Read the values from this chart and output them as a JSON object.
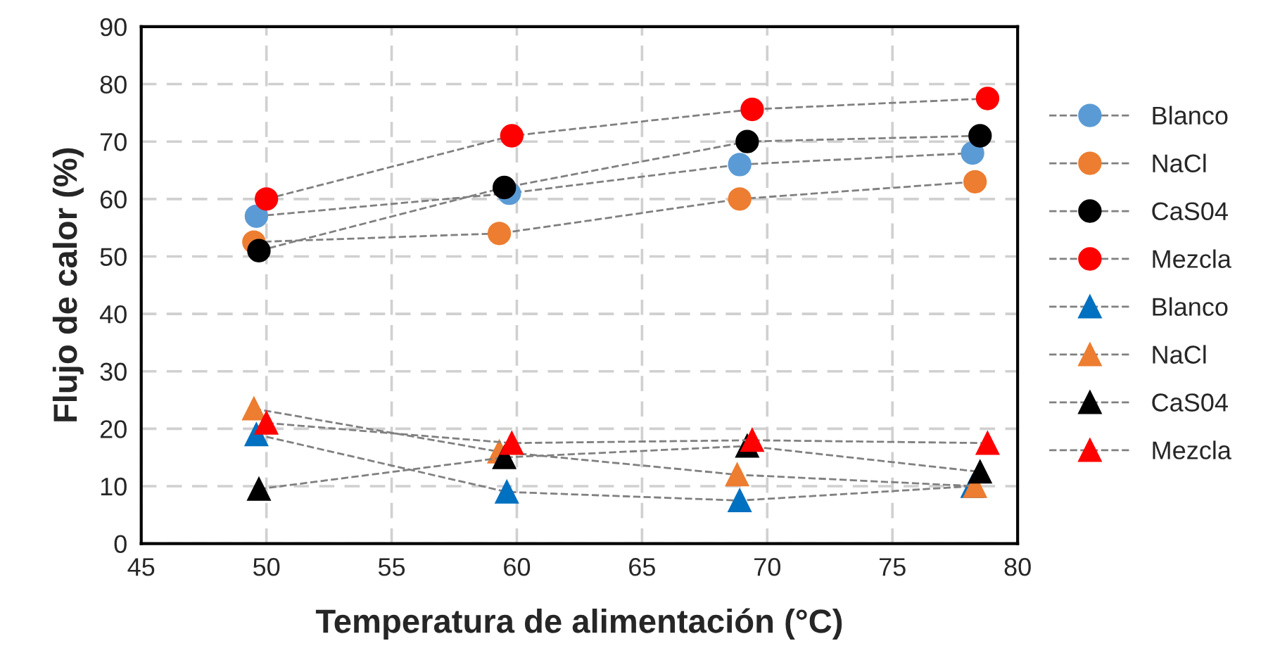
{
  "chart_data": {
    "type": "line",
    "xlabel": "Temperatura de alimentación (°C)",
    "ylabel": "Flujo de calor (%)",
    "xlim": [
      45,
      80
    ],
    "xticks": [
      45,
      50,
      55,
      60,
      65,
      70,
      75,
      80
    ],
    "ylim": [
      0,
      90
    ],
    "yticks": [
      0,
      10,
      20,
      30,
      40,
      50,
      60,
      70,
      80,
      90
    ],
    "grid": true,
    "legend": "right",
    "line_style": "dashed",
    "series": [
      {
        "name": "Blanco",
        "color": "#5b9bd5",
        "marker": "circle",
        "x": [
          49.6,
          59.7,
          68.9,
          78.2
        ],
        "values": [
          57,
          61,
          66,
          68
        ]
      },
      {
        "name": "NaCl",
        "color": "#ed7d31",
        "marker": "circle",
        "x": [
          49.5,
          59.3,
          68.9,
          78.3
        ],
        "values": [
          52.5,
          54,
          60,
          63
        ]
      },
      {
        "name": "CaS04",
        "color": "#000000",
        "marker": "circle",
        "x": [
          49.7,
          59.5,
          69.2,
          78.5
        ],
        "values": [
          51,
          62,
          70,
          71
        ]
      },
      {
        "name": "Mezcla",
        "color": "#ff0000",
        "marker": "circle",
        "x": [
          50,
          59.8,
          69.4,
          78.8
        ],
        "values": [
          60,
          71,
          75.6,
          77.5
        ]
      },
      {
        "name": "Blanco",
        "color": "#0070c0",
        "marker": "triangle",
        "x": [
          49.6,
          59.6,
          68.9,
          78.2
        ],
        "values": [
          19,
          9,
          7.5,
          10
        ]
      },
      {
        "name": "NaCl",
        "color": "#ed7d31",
        "marker": "triangle",
        "x": [
          49.5,
          59.3,
          68.8,
          78.3
        ],
        "values": [
          23.5,
          16,
          12,
          10
        ]
      },
      {
        "name": "CaS04",
        "color": "#000000",
        "marker": "triangle",
        "x": [
          49.7,
          59.5,
          69.2,
          78.5
        ],
        "values": [
          9.5,
          15,
          17,
          12.5
        ]
      },
      {
        "name": "Mezcla",
        "color": "#ff0000",
        "marker": "triangle",
        "x": [
          50,
          59.8,
          69.4,
          78.8
        ],
        "values": [
          21,
          17.5,
          18,
          17.5
        ]
      }
    ]
  }
}
